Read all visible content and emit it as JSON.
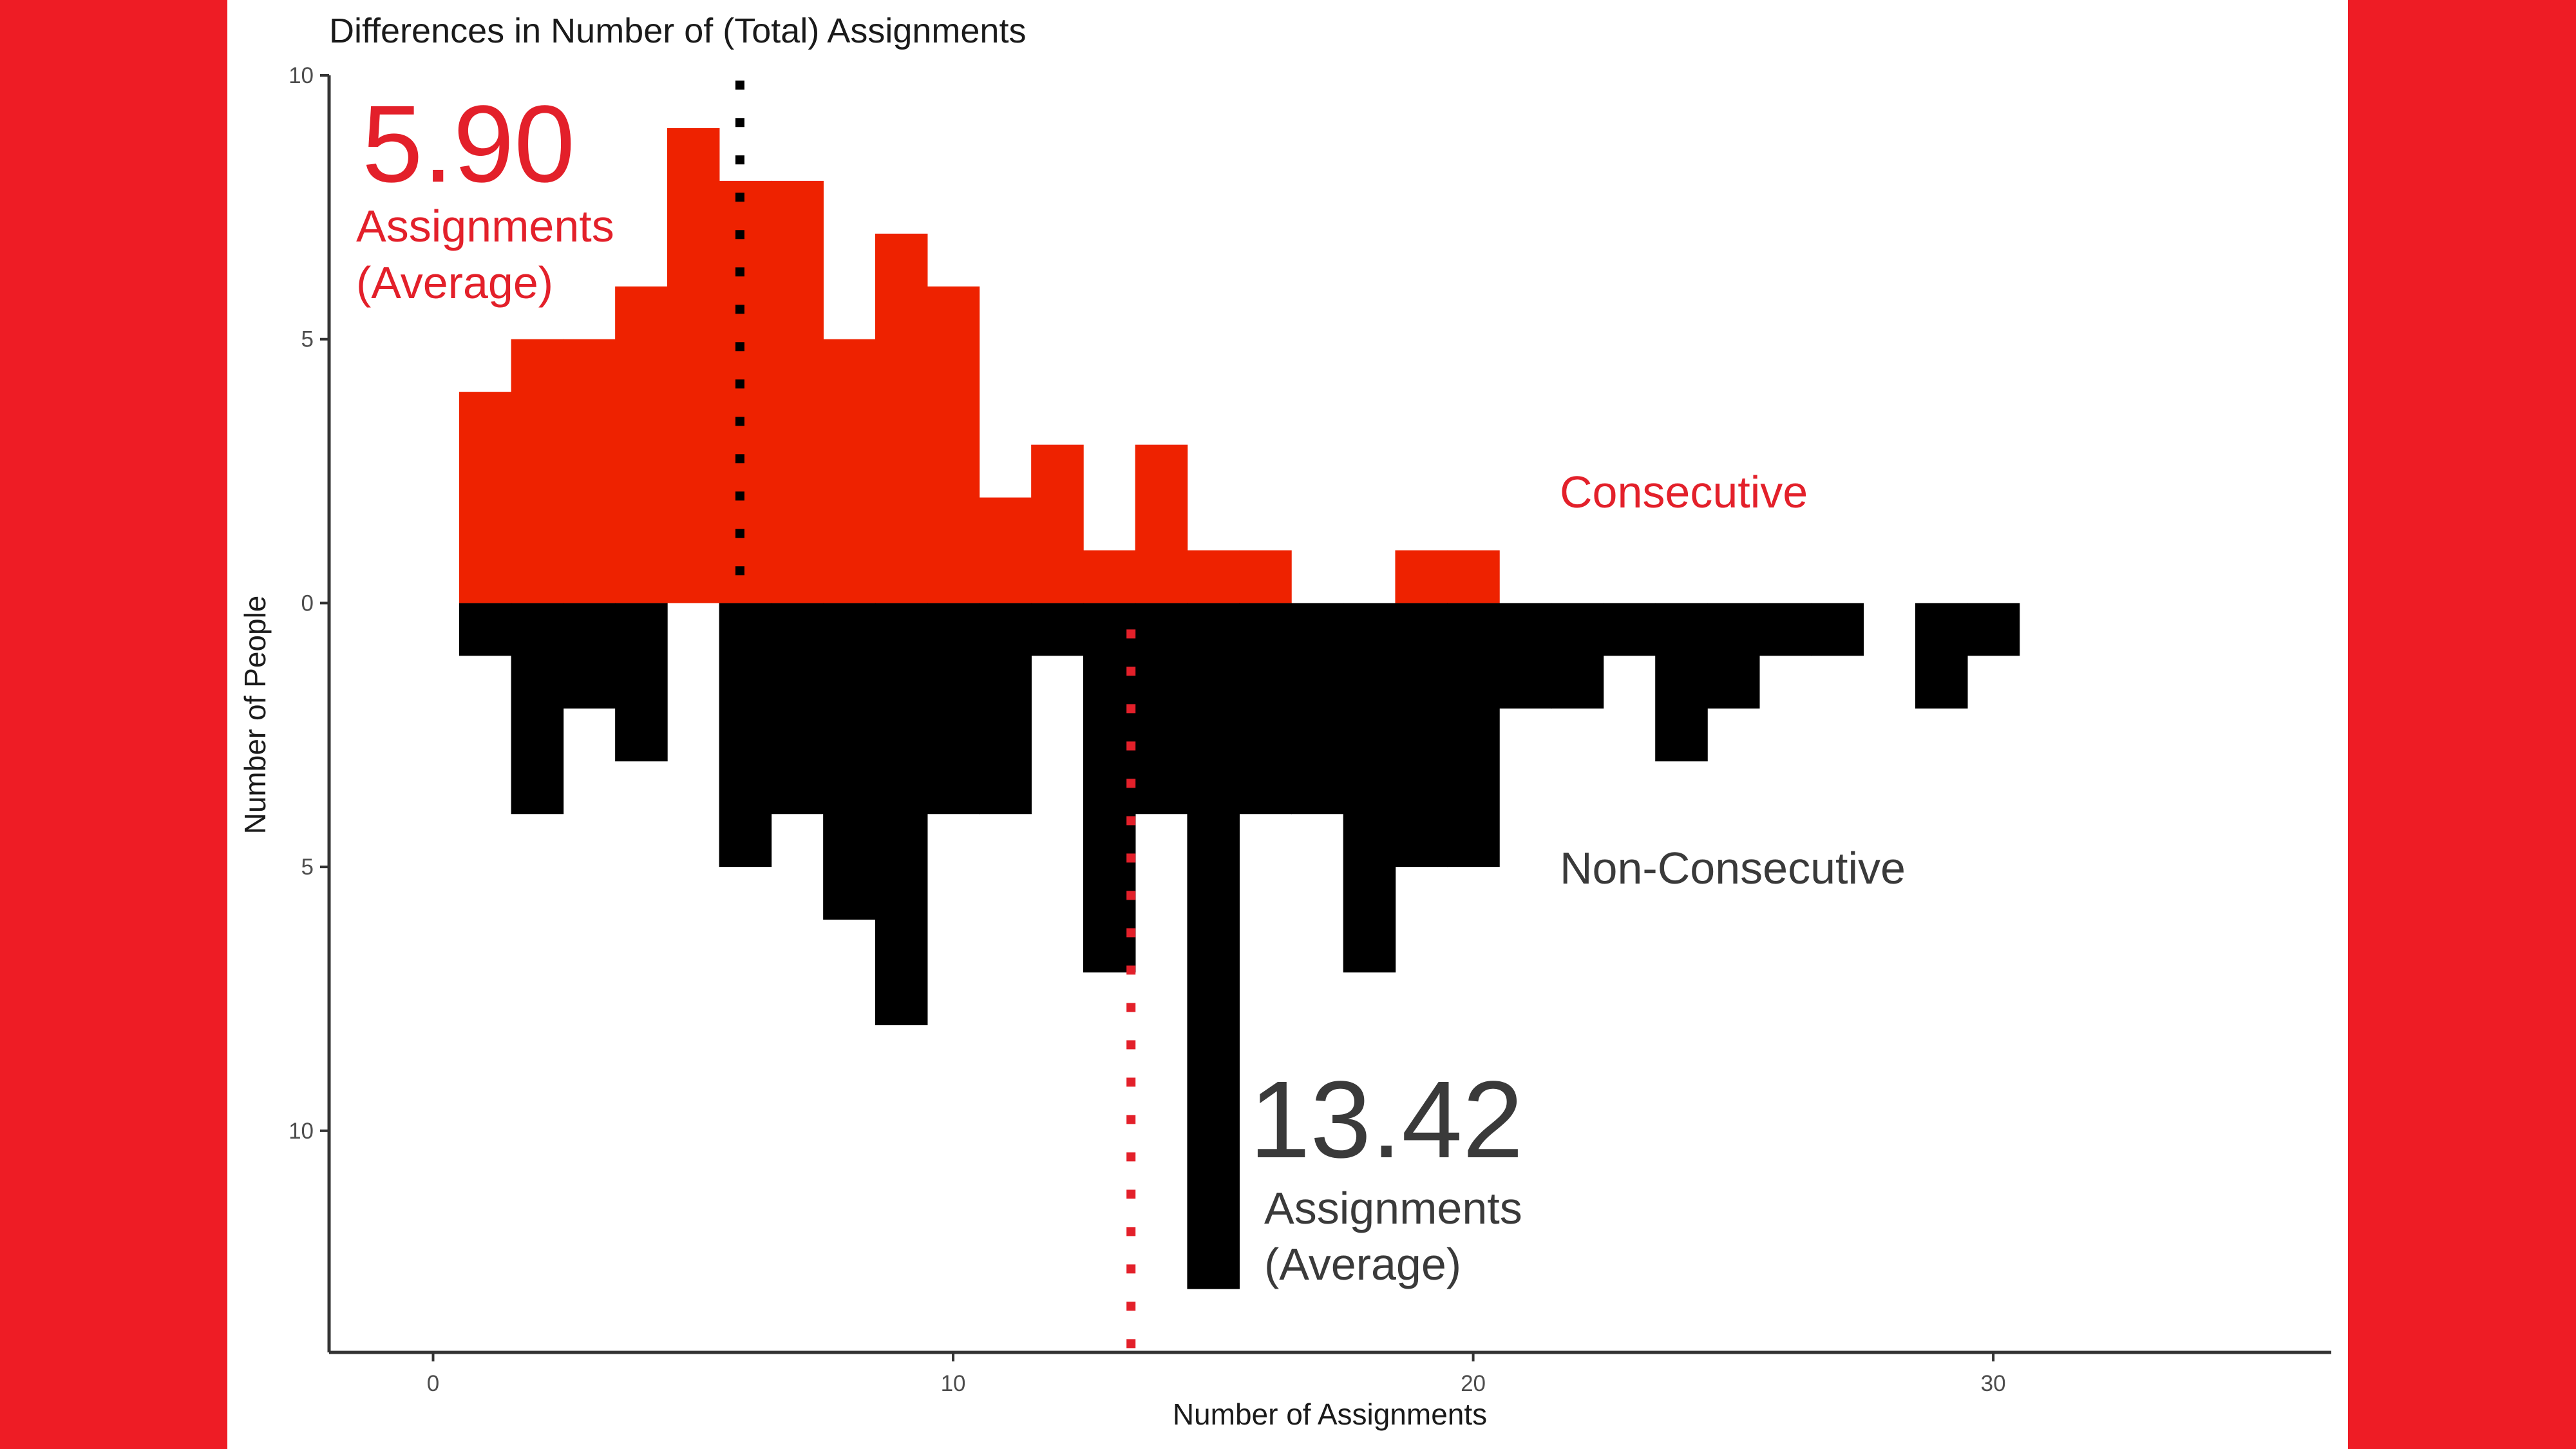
{
  "colors": {
    "background": "#EE1C25",
    "panel": "#FFFFFF",
    "consecutive": "#EE2200",
    "non_consecutive": "#000000",
    "red_text": "#E3202A",
    "dark_text": "#3A3A3A"
  },
  "chart_data": {
    "type": "bar",
    "title": "Differences in Number of (Total) Assignments",
    "xlabel": "Number of Assignments",
    "ylabel": "Number of People",
    "xlim": [
      -2,
      36.5
    ],
    "ylim": [
      -14.2,
      10
    ],
    "xticks": [
      0,
      10,
      20,
      30
    ],
    "yticks": [
      10,
      5,
      0,
      5,
      10
    ],
    "ytick_values": [
      10,
      5,
      0,
      -5,
      -10
    ],
    "bin_width": 1,
    "grid": false,
    "series": [
      {
        "name": "Consecutive",
        "direction": "up",
        "bins": [
          1,
          2,
          3,
          4,
          5,
          6,
          7,
          8,
          9,
          10,
          11,
          12,
          13,
          14,
          15,
          16,
          17,
          18,
          19,
          20
        ],
        "counts": [
          4,
          5,
          5,
          6,
          9,
          8,
          8,
          5,
          7,
          6,
          2,
          3,
          1,
          3,
          1,
          1,
          0,
          0,
          1,
          1
        ],
        "mean": 5.9
      },
      {
        "name": "Non-Consecutive",
        "direction": "down",
        "bins": [
          1,
          2,
          3,
          4,
          5,
          6,
          7,
          8,
          9,
          10,
          11,
          12,
          13,
          14,
          15,
          16,
          17,
          18,
          19,
          20,
          21,
          22,
          23,
          24,
          25,
          26,
          27,
          28,
          29,
          30
        ],
        "counts": [
          1,
          4,
          2,
          3,
          0,
          5,
          4,
          6,
          8,
          4,
          4,
          1,
          7,
          4,
          13,
          4,
          4,
          7,
          5,
          5,
          2,
          2,
          1,
          3,
          2,
          1,
          1,
          0,
          2,
          1
        ],
        "mean": 13.42
      }
    ],
    "annotations": {
      "consecutive_mean_value": "5.90",
      "consecutive_mean_line1": "Assignments",
      "consecutive_mean_line2": "(Average)",
      "consecutive_label": "Consecutive",
      "non_consecutive_mean_value": "13.42",
      "non_consecutive_mean_line1": "Assignments",
      "non_consecutive_mean_line2": "(Average)",
      "non_consecutive_label": "Non-Consecutive"
    }
  }
}
